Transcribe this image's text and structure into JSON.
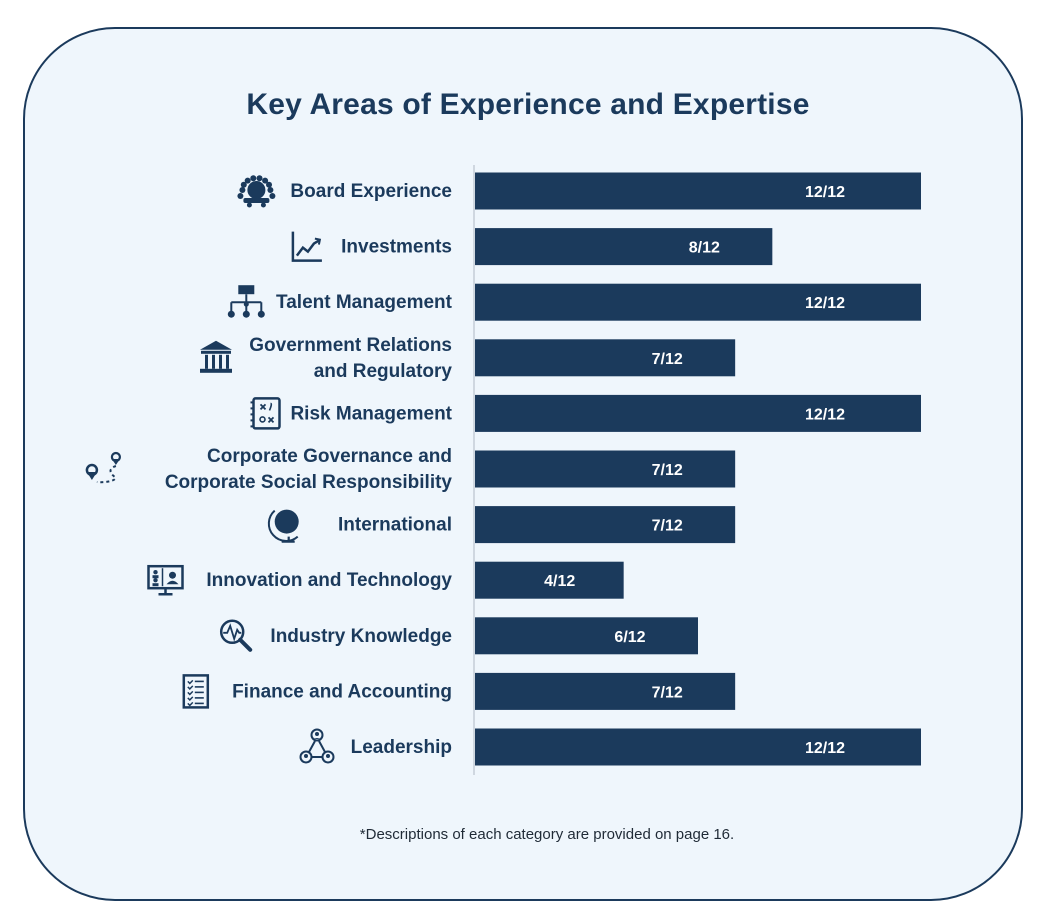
{
  "chart_data": {
    "type": "bar",
    "orientation": "horizontal",
    "title": "Key Areas of Experience and Expertise",
    "xlabel": "",
    "ylabel": "",
    "xlim": [
      0,
      12
    ],
    "grid": false,
    "categories": [
      {
        "lines": [
          "Board Experience"
        ],
        "icon": "board-meeting-icon"
      },
      {
        "lines": [
          "Investments"
        ],
        "icon": "line-chart-icon"
      },
      {
        "lines": [
          "Talent Management"
        ],
        "icon": "org-chart-icon"
      },
      {
        "lines": [
          "Government Relations",
          "and Regulatory"
        ],
        "icon": "government-building-icon"
      },
      {
        "lines": [
          "Risk Management"
        ],
        "icon": "strategy-plan-icon"
      },
      {
        "lines": [
          "Corporate Governance and",
          "Corporate Social Responsibility"
        ],
        "icon": "route-map-icon"
      },
      {
        "lines": [
          "International"
        ],
        "icon": "globe-icon"
      },
      {
        "lines": [
          "Innovation and Technology"
        ],
        "icon": "video-conference-icon"
      },
      {
        "lines": [
          "Industry Knowledge"
        ],
        "icon": "magnifier-pulse-icon"
      },
      {
        "lines": [
          "Finance and Accounting"
        ],
        "icon": "checklist-icon"
      },
      {
        "lines": [
          "Leadership"
        ],
        "icon": "team-hierarchy-icon"
      }
    ],
    "values": [
      12,
      8,
      12,
      7,
      12,
      7,
      7,
      4,
      6,
      7,
      12
    ],
    "value_labels": [
      "12/12",
      "8/12",
      "12/12",
      "7/12",
      "12/12",
      "7/12",
      "7/12",
      "4/12",
      "6/12",
      "7/12",
      "12/12"
    ],
    "max_value": 12,
    "bar_color": "#1b3a5c",
    "footnote": "*Descriptions of each category are provided on page 16."
  },
  "colors": {
    "background": "#eff6fc",
    "border": "#1b3a5c",
    "text": "#1b3a5c",
    "bar_text": "#ffffff"
  }
}
